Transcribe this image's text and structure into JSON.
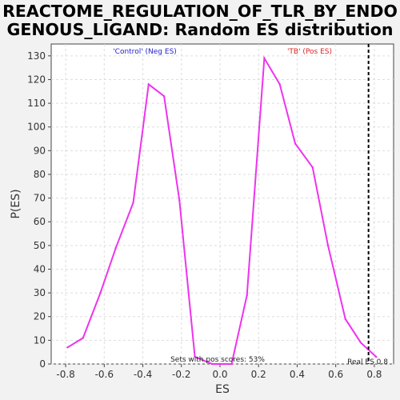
{
  "chart_data": {
    "type": "line",
    "title": "REACTOME_REGULATION_OF_TLR_BY_ENDOGENOUS_LIGAND: Random ES distribution",
    "title_lines": [
      "REACTOME_REGULATION_OF_TLR_BY_ENDO",
      "GENOUS_LIGAND: Random ES distribution"
    ],
    "xlabel": "ES",
    "ylabel": "P(ES)",
    "xlim": [
      -0.875,
      0.9
    ],
    "ylim": [
      0,
      135
    ],
    "x_ticks": [
      -0.8,
      -0.6,
      -0.4,
      -0.2,
      0.0,
      0.2,
      0.4,
      0.6,
      0.8
    ],
    "x_tick_labels": [
      "-0.8",
      "-0.6",
      "-0.4",
      "-0.2",
      "0.0",
      "0.2",
      "0.4",
      "0.6",
      "0.8"
    ],
    "y_ticks": [
      0,
      10,
      20,
      30,
      40,
      50,
      60,
      70,
      80,
      90,
      100,
      110,
      120,
      130
    ],
    "grid": true,
    "series": [
      {
        "color": "#ee33ee",
        "x": [
          -0.79,
          -0.71,
          -0.62,
          -0.54,
          -0.45,
          -0.37,
          -0.29,
          -0.21,
          -0.13,
          -0.04,
          0.06,
          0.14,
          0.23,
          0.31,
          0.39,
          0.48,
          0.56,
          0.65,
          0.73,
          0.81
        ],
        "y": [
          7,
          11,
          30,
          49,
          68,
          118,
          113,
          69,
          3,
          0,
          0,
          29,
          129,
          118,
          93,
          83,
          50,
          19,
          9,
          3
        ]
      }
    ],
    "real_es": {
      "x": 0.77,
      "label": "Real ES 0.8",
      "color": "#000000"
    },
    "annotations": {
      "neg_label": "'Control' (Neg ES)",
      "neg_color": "#2222cc",
      "pos_label": "'TB' (Pos ES)",
      "pos_color": "#dd2222",
      "sets_label": "Sets with pos scores: 53%"
    }
  }
}
